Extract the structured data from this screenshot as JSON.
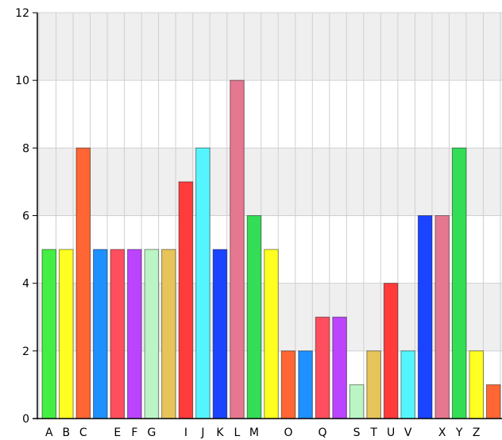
{
  "chart_data": {
    "type": "bar",
    "title": "",
    "xlabel": "",
    "ylabel": "",
    "ylim": [
      0,
      12
    ],
    "yticks": [
      0,
      2,
      4,
      6,
      8,
      10,
      12
    ],
    "grid": true,
    "legend": "none",
    "bars": [
      {
        "label": "A",
        "value": 5,
        "color": "#44ee44"
      },
      {
        "label": "B",
        "value": 5,
        "color": "#ffff22"
      },
      {
        "label": "C",
        "value": 8,
        "color": "#ff6633"
      },
      {
        "label": "",
        "value": 5,
        "color": "#1e90ff"
      },
      {
        "label": "E",
        "value": 5,
        "color": "#ff4f5e"
      },
      {
        "label": "F",
        "value": 5,
        "color": "#bb44ff"
      },
      {
        "label": "G",
        "value": 5,
        "color": "#bbf5c5"
      },
      {
        "label": "",
        "value": 5,
        "color": "#e6c45a"
      },
      {
        "label": "I",
        "value": 7,
        "color": "#ff3b3b"
      },
      {
        "label": "J",
        "value": 8,
        "color": "#55f5ff"
      },
      {
        "label": "K",
        "value": 5,
        "color": "#1a44ff"
      },
      {
        "label": "L",
        "value": 10,
        "color": "#e57890"
      },
      {
        "label": "M",
        "value": 6,
        "color": "#33dd55"
      },
      {
        "label": "",
        "value": 5,
        "color": "#ffff22"
      },
      {
        "label": "O",
        "value": 2,
        "color": "#ff6633"
      },
      {
        "label": "",
        "value": 2,
        "color": "#1e90ff"
      },
      {
        "label": "Q",
        "value": 3,
        "color": "#ff4f5e"
      },
      {
        "label": "",
        "value": 3,
        "color": "#bb44ff"
      },
      {
        "label": "S",
        "value": 1,
        "color": "#bbf5c5"
      },
      {
        "label": "T",
        "value": 2,
        "color": "#e6c45a"
      },
      {
        "label": "U",
        "value": 4,
        "color": "#ff3b3b"
      },
      {
        "label": "V",
        "value": 2,
        "color": "#55f5ff"
      },
      {
        "label": "",
        "value": 6,
        "color": "#1a44ff"
      },
      {
        "label": "X",
        "value": 6,
        "color": "#e57890"
      },
      {
        "label": "Y",
        "value": 8,
        "color": "#33dd55"
      },
      {
        "label": "Z",
        "value": 2,
        "color": "#ffff22"
      },
      {
        "label": "",
        "value": 1,
        "color": "#ff6633"
      }
    ],
    "band_color": "#efefef",
    "grid_color": "#d0d0d0"
  }
}
